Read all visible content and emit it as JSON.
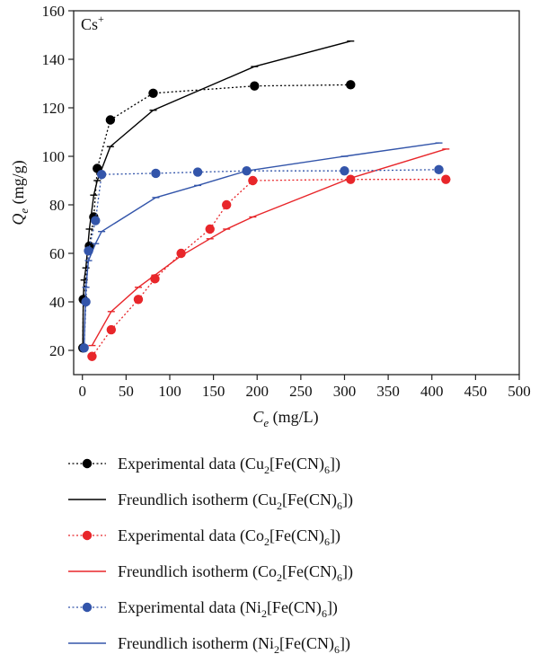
{
  "chart_data": {
    "type": "scatter",
    "annotation": "Cs",
    "annotation_sup": "+",
    "xlabel": {
      "main": "C",
      "sub": "e",
      "unit": " (mg/L)"
    },
    "ylabel": {
      "main": "Q",
      "sub": "e",
      "unit": " (mg/g)"
    },
    "xlim": [
      -10,
      500
    ],
    "ylim": [
      10,
      160
    ],
    "xticks": [
      0,
      50,
      100,
      150,
      200,
      250,
      300,
      350,
      400,
      450,
      500
    ],
    "yticks": [
      20,
      40,
      60,
      80,
      100,
      120,
      140,
      160
    ],
    "series": [
      {
        "kind": "experimental",
        "color": "#000000",
        "label": {
          "text": "Experimental data (Cu",
          "sub1": "2",
          "mid": "[Fe(CN)",
          "sub2": "6",
          "end": "])"
        },
        "x": [
          0.5,
          1.0,
          8,
          13,
          17,
          32,
          81,
          197,
          307
        ],
        "y": [
          21,
          41,
          63,
          75,
          95,
          115,
          126,
          129,
          129.5
        ]
      },
      {
        "kind": "fit",
        "color": "#000000",
        "label": {
          "text": "Freundlich isotherm (Cu",
          "sub1": "2",
          "mid": "[Fe(CN)",
          "sub2": "6",
          "end": "])"
        },
        "x": [
          0.5,
          1.0,
          2,
          4,
          8,
          13,
          17,
          32,
          81,
          197,
          307
        ],
        "y": [
          21,
          41,
          49,
          54,
          70,
          84,
          90,
          104,
          119,
          137,
          147.5
        ]
      },
      {
        "kind": "experimental",
        "color": "#e8262a",
        "label": {
          "text": "Experimental data (Co",
          "sub1": "2",
          "mid": "[Fe(CN)",
          "sub2": "6",
          "end": "])"
        },
        "x": [
          11,
          33,
          64,
          83,
          113,
          146,
          165,
          195,
          307,
          416
        ],
        "y": [
          17.5,
          28.5,
          41,
          49.5,
          60,
          70,
          80,
          90,
          90.5,
          90.5
        ]
      },
      {
        "kind": "fit",
        "color": "#e8262a",
        "label": {
          "text": "Freundlich isotherm (Co",
          "sub1": "2",
          "mid": "[Fe(CN)",
          "sub2": "6",
          "end": "])"
        },
        "x": [
          11,
          33,
          64,
          83,
          113,
          146,
          165,
          195,
          307,
          416
        ],
        "y": [
          22,
          36,
          46,
          51,
          59,
          66,
          70,
          75,
          91,
          103
        ]
      },
      {
        "kind": "experimental",
        "color": "#3355aa",
        "label": {
          "text": "Experimental data (Ni",
          "sub1": "2",
          "mid": "[Fe(CN)",
          "sub2": "6",
          "end": "])"
        },
        "x": [
          2,
          4,
          7,
          15,
          22,
          84,
          132,
          188,
          300,
          408
        ],
        "y": [
          21,
          40,
          61,
          73.5,
          92.5,
          93,
          93.5,
          94,
          94,
          94.5
        ]
      },
      {
        "kind": "fit",
        "color": "#3355aa",
        "label": {
          "text": "Freundlich isotherm (Ni",
          "sub1": "2",
          "mid": "[Fe(CN)",
          "sub2": "6",
          "end": "])"
        },
        "x": [
          2,
          4,
          7,
          15,
          22,
          84,
          132,
          188,
          300,
          408
        ],
        "y": [
          22,
          46,
          57,
          64,
          69,
          83,
          88,
          94,
          100,
          105.5
        ]
      }
    ]
  }
}
